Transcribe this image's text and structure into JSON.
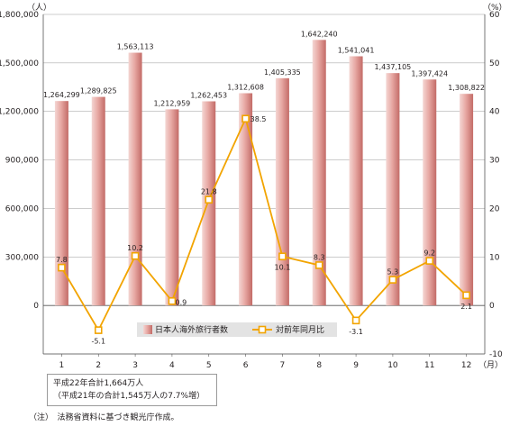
{
  "chart_data": {
    "type": "bar",
    "categories": [
      "1",
      "2",
      "3",
      "4",
      "5",
      "6",
      "7",
      "8",
      "9",
      "10",
      "11",
      "12"
    ],
    "x_unit_label": "（月）",
    "series": [
      {
        "name": "日本人海外旅行者数",
        "type": "bar",
        "axis": "left",
        "values": [
          1264299,
          1289825,
          1563113,
          1212959,
          1262453,
          1312608,
          1405335,
          1642240,
          1541041,
          1437105,
          1397424,
          1308822
        ],
        "labels": [
          "1,264,299",
          "1,289,825",
          "1,563,113",
          "1,212,959",
          "1,262,453",
          "1,312,608",
          "1,405,335",
          "1,642,240",
          "1,541,041",
          "1,437,105",
          "1,397,424",
          "1,308,822"
        ]
      },
      {
        "name": "対前年同月比",
        "type": "line",
        "axis": "right",
        "values": [
          7.8,
          -5.1,
          10.2,
          0.9,
          21.8,
          38.5,
          10.1,
          8.3,
          -3.1,
          5.3,
          9.2,
          2.1
        ],
        "labels": [
          "7.8",
          "-5.1",
          "10.2",
          "0.9",
          "21.8",
          "38.5",
          "10.1",
          "8.3",
          "-3.1",
          "5.3",
          "9.2",
          "2.1"
        ]
      }
    ],
    "y_left": {
      "unit_label": "（人）",
      "range": [
        -300000,
        1800000
      ],
      "ticks": [
        0,
        300000,
        600000,
        900000,
        1200000,
        1500000,
        1800000
      ],
      "tick_labels": [
        "0",
        "300,000",
        "600,000",
        "900,000",
        "1,200,000",
        "1,500,000",
        "1,800,000"
      ]
    },
    "y_right": {
      "unit_label": "（%）",
      "range": [
        -10,
        60
      ],
      "ticks": [
        -10,
        0,
        10,
        20,
        30,
        40,
        50,
        60
      ],
      "tick_labels": [
        "-10",
        "0",
        "10",
        "20",
        "30",
        "40",
        "50",
        "60"
      ]
    },
    "grid": "horizontal",
    "legend_placement": "bottom-center",
    "colors": {
      "bar_light": "#f4d6d3",
      "bar_dark": "#c36b67",
      "line": "#f2a400",
      "grid": "#8f8f8f",
      "legend_bg": "#e3e3e3"
    }
  },
  "summary": {
    "line1": "平成22年合計1,664万人",
    "line2": "（平成21年の合計1,545万人の7.7%増）"
  },
  "footnote": "（注）　法務省資料に基づき観光庁作成。"
}
